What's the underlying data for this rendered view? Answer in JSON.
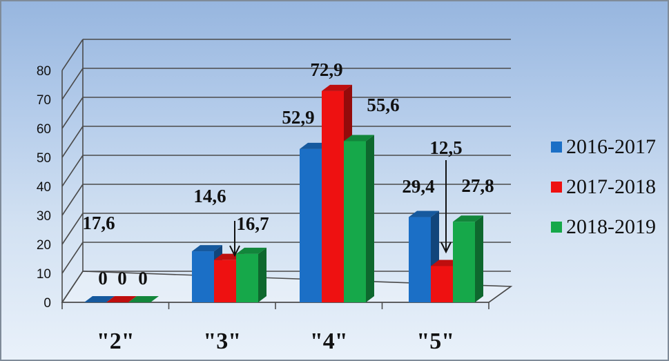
{
  "chart_data": {
    "type": "bar",
    "categories": [
      "\"2\"",
      "\"3\"",
      "\"4\"",
      "\"5\""
    ],
    "series": [
      {
        "name": "2016-2017",
        "color": "#1b6fc6",
        "values": [
          0,
          17.6,
          52.9,
          29.4
        ],
        "labels": [
          "0",
          "17,6",
          "52,9",
          "29,4"
        ]
      },
      {
        "name": "2017-2018",
        "color": "#ee1111",
        "values": [
          0,
          14.6,
          72.9,
          12.5
        ],
        "labels": [
          "0",
          "14,6",
          "72,9",
          "12,5"
        ]
      },
      {
        "name": "2018-2019",
        "color": "#16a84a",
        "values": [
          0,
          16.7,
          55.6,
          27.8
        ],
        "labels": [
          "0",
          "16,7",
          "55,6",
          "27,8"
        ]
      }
    ],
    "yticks": [
      "0",
      "10",
      "20",
      "30",
      "40",
      "50",
      "60",
      "70",
      "80"
    ],
    "ylim": [
      0,
      80
    ],
    "grid": true,
    "legend": "right",
    "style": "3d-clustered"
  }
}
